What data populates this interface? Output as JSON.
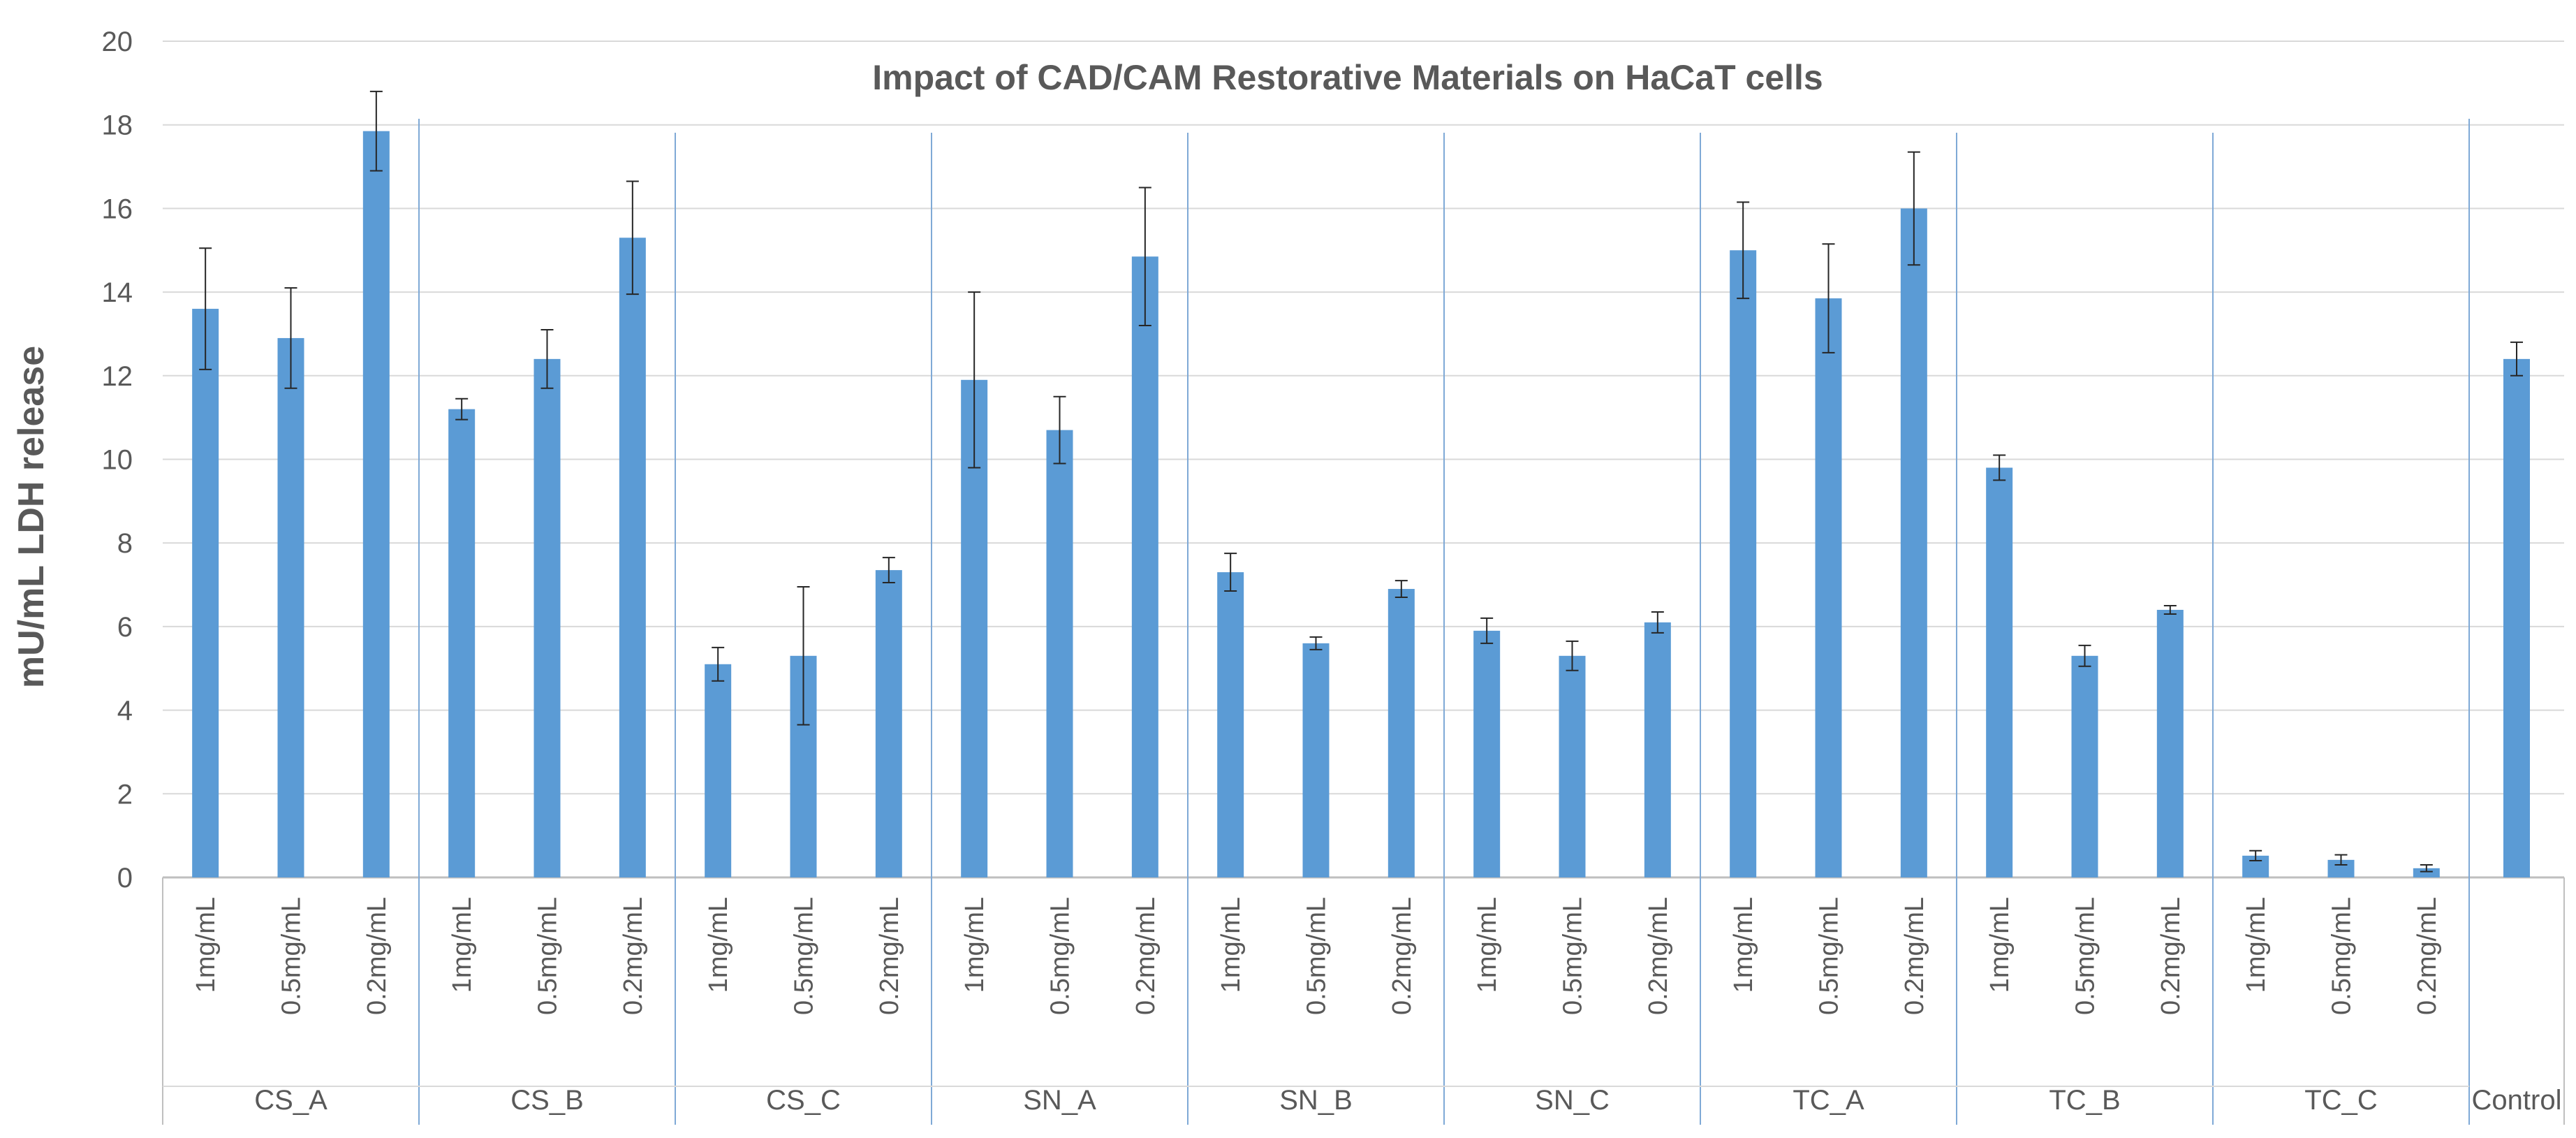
{
  "chart_data": {
    "type": "bar",
    "title": "Impact of CAD/CAM Restorative Materials on HaCaT cells",
    "ylabel": "mU/mL LDH release",
    "xlabel": "",
    "ylim": [
      0,
      20
    ],
    "yticks": [
      0,
      2,
      4,
      6,
      8,
      10,
      12,
      14,
      16,
      18,
      20
    ],
    "grid": true,
    "bar_color": "#5B9BD5",
    "groups": [
      {
        "name": "CS_A",
        "categories": [
          "1mg/mL",
          "0.5mg/mL",
          "0.2mg/mL"
        ],
        "values": [
          13.6,
          12.9,
          17.85
        ],
        "errors": [
          1.45,
          1.2,
          0.95
        ]
      },
      {
        "name": "CS_B",
        "categories": [
          "1mg/mL",
          "0.5mg/mL",
          "0.2mg/mL"
        ],
        "values": [
          11.2,
          12.4,
          15.3
        ],
        "errors": [
          0.25,
          0.7,
          1.35
        ]
      },
      {
        "name": "CS_C",
        "categories": [
          "1mg/mL",
          "0.5mg/mL",
          "0.2mg/mL"
        ],
        "values": [
          5.1,
          5.3,
          7.35
        ],
        "errors": [
          0.4,
          1.65,
          0.3
        ]
      },
      {
        "name": "SN_A",
        "categories": [
          "1mg/mL",
          "0.5mg/mL",
          "0.2mg/mL"
        ],
        "values": [
          11.9,
          10.7,
          14.85
        ],
        "errors": [
          2.1,
          0.8,
          1.65
        ]
      },
      {
        "name": "SN_B",
        "categories": [
          "1mg/mL",
          "0.5mg/mL",
          "0.2mg/mL"
        ],
        "values": [
          7.3,
          5.6,
          6.9
        ],
        "errors": [
          0.45,
          0.15,
          0.2
        ]
      },
      {
        "name": "SN_C",
        "categories": [
          "1mg/mL",
          "0.5mg/mL",
          "0.2mg/mL"
        ],
        "values": [
          5.9,
          5.3,
          6.1
        ],
        "errors": [
          0.3,
          0.35,
          0.25
        ]
      },
      {
        "name": "TC_A",
        "categories": [
          "1mg/mL",
          "0.5mg/mL",
          "0.2mg/mL"
        ],
        "values": [
          15.0,
          13.85,
          16.0
        ],
        "errors": [
          1.15,
          1.3,
          1.35
        ]
      },
      {
        "name": "TC_B",
        "categories": [
          "1mg/mL",
          "0.5mg/mL",
          "0.2mg/mL"
        ],
        "values": [
          9.8,
          5.3,
          6.4
        ],
        "errors": [
          0.3,
          0.25,
          0.1
        ]
      },
      {
        "name": "TC_C",
        "categories": [
          "1mg/mL",
          "0.5mg/mL",
          "0.2mg/mL"
        ],
        "values": [
          0.52,
          0.42,
          0.22
        ],
        "errors": [
          0.12,
          0.12,
          0.08
        ]
      },
      {
        "name": "Control",
        "categories": [
          ""
        ],
        "values": [
          12.4
        ],
        "errors": [
          0.4
        ]
      }
    ]
  }
}
